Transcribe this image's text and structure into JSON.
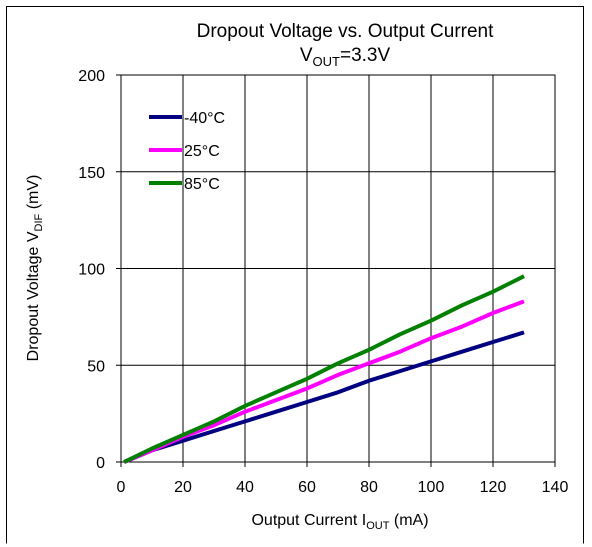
{
  "chart_data": {
    "type": "line",
    "title": "Dropout Voltage vs. Output Current",
    "subtitle": {
      "prefix": "V",
      "subscript": "OUT",
      "suffix": "=3.3V"
    },
    "xlabel": {
      "prefix": "Output Current I",
      "subscript": "OUT",
      "suffix": " (mA)"
    },
    "ylabel": {
      "prefix": "Dropout Voltage V",
      "subscript": "DIF",
      "suffix": " (mV)"
    },
    "xlim": [
      0,
      140
    ],
    "ylim": [
      0,
      200
    ],
    "xticks": [
      0,
      20,
      40,
      60,
      80,
      100,
      120,
      140
    ],
    "yticks": [
      0,
      50,
      100,
      150,
      200
    ],
    "xtick_labels": [
      "0",
      "20",
      "40",
      "60",
      "80",
      "100",
      "120",
      "140"
    ],
    "ytick_labels": [
      "0",
      "50",
      "100",
      "150",
      "200"
    ],
    "grid": true,
    "legend_position": "top-left",
    "series": [
      {
        "name": "-40°C",
        "color": "#000080",
        "x": [
          1,
          10,
          20,
          30,
          40,
          50,
          60,
          70,
          80,
          90,
          100,
          110,
          120,
          130
        ],
        "y": [
          0,
          6,
          11,
          16,
          21,
          26,
          31,
          36,
          42,
          47,
          52,
          57,
          62,
          67
        ]
      },
      {
        "name": "25°C",
        "color": "#ff00ff",
        "x": [
          1,
          10,
          20,
          30,
          40,
          50,
          60,
          70,
          80,
          90,
          100,
          110,
          120,
          130
        ],
        "y": [
          0,
          6,
          13,
          19,
          26,
          32,
          38,
          45,
          51,
          57,
          64,
          70,
          77,
          83
        ]
      },
      {
        "name": "85°C",
        "color": "#008000",
        "x": [
          1,
          10,
          20,
          30,
          40,
          50,
          60,
          70,
          80,
          90,
          100,
          110,
          120,
          130
        ],
        "y": [
          0,
          7,
          14,
          21,
          29,
          36,
          43,
          51,
          58,
          66,
          73,
          81,
          88,
          96
        ]
      }
    ]
  }
}
